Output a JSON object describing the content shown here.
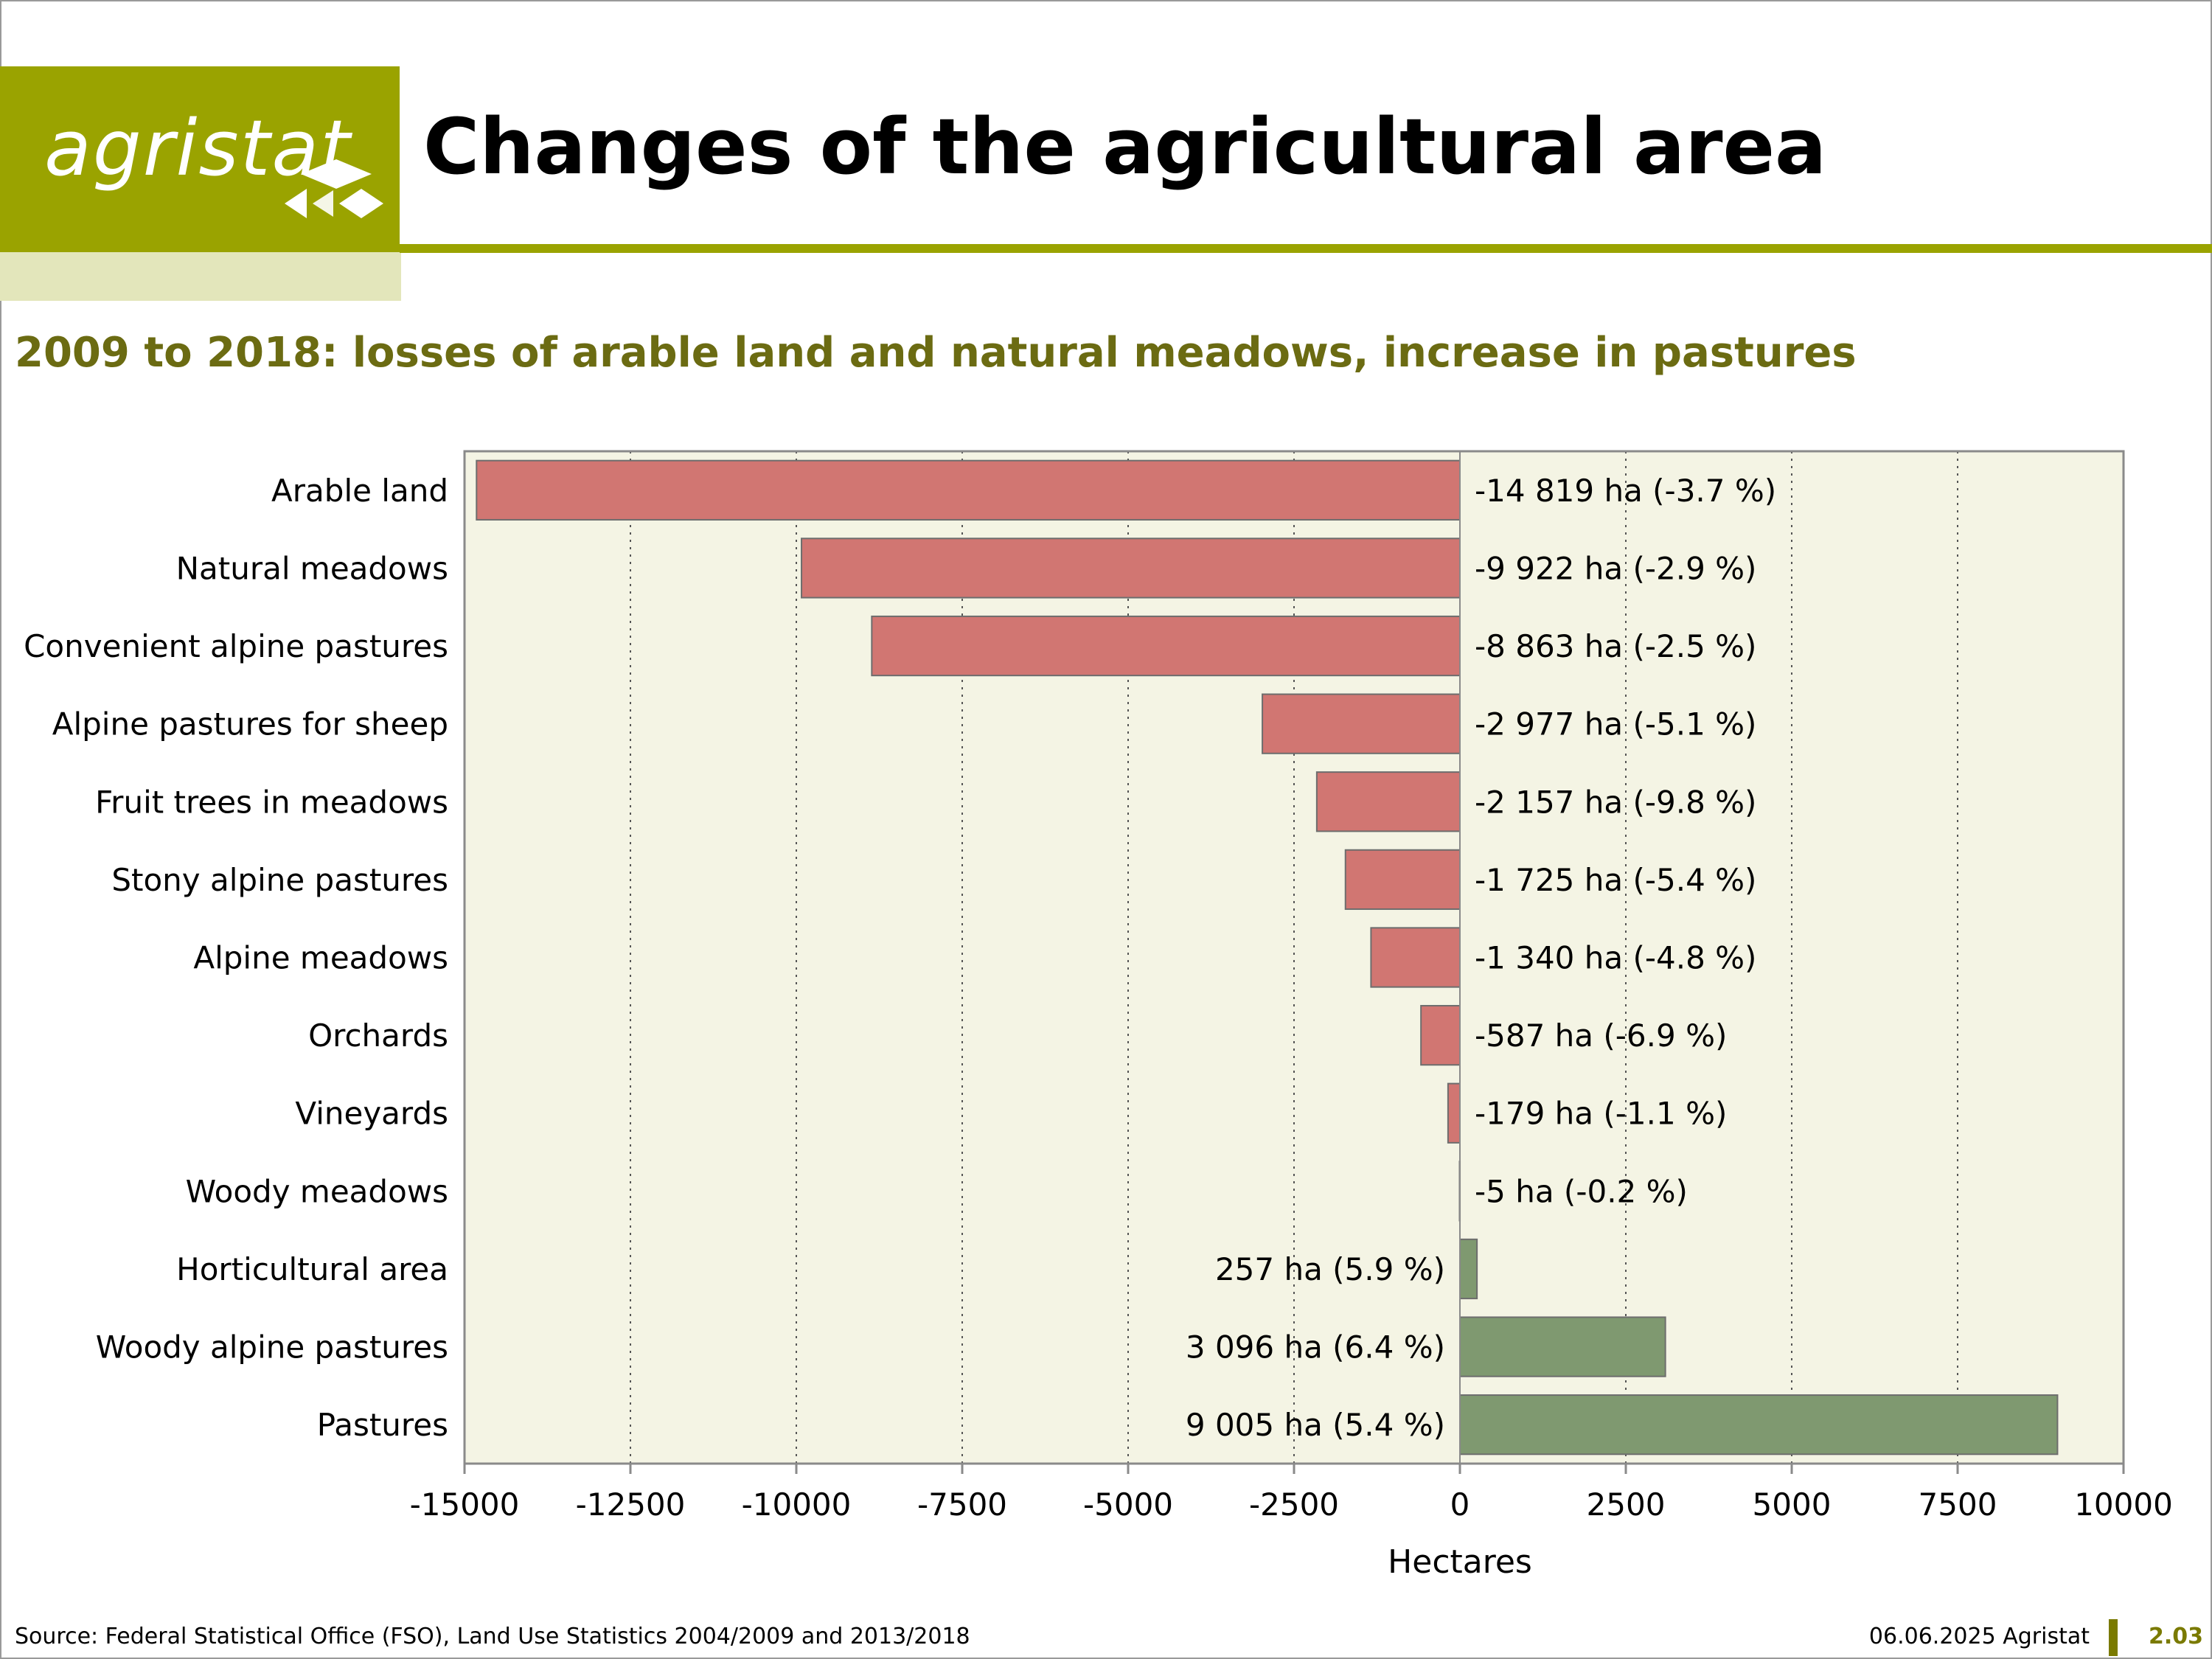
{
  "header": {
    "logo_text": "agristat",
    "title": "Changes of the agricultural area",
    "subtitle": "2009 to 2018: losses of arable land and natural meadows, increase in pastures"
  },
  "colors": {
    "brand": "#9aa300",
    "negative_bar": "#d17672",
    "positive_bar": "#7f9970",
    "plot_background": "#f4f4e4",
    "subtitle": "#6b6b12"
  },
  "chart_data": {
    "type": "bar",
    "orientation": "horizontal",
    "categories": [
      "Arable land",
      "Natural meadows",
      "Convenient alpine pastures",
      "Alpine pastures for sheep",
      "Fruit trees in meadows",
      "Stony alpine pastures",
      "Alpine meadows",
      "Orchards",
      "Vineyards",
      "Woody meadows",
      "Horticultural area",
      "Woody alpine pastures",
      "Pastures"
    ],
    "values": [
      -14819,
      -9922,
      -8863,
      -2977,
      -2157,
      -1725,
      -1340,
      -587,
      -179,
      -5,
      257,
      3096,
      9005
    ],
    "data_labels": [
      "-14 819 ha (-3.7 %)",
      "-9 922 ha (-2.9 %)",
      "-8 863 ha (-2.5 %)",
      "-2 977 ha (-5.1 %)",
      "-2 157 ha (-9.8 %)",
      "-1 725 ha (-5.4 %)",
      "-1 340 ha (-4.8 %)",
      "-587 ha (-6.9 %)",
      "-179 ha (-1.1 %)",
      "-5 ha (-0.2 %)",
      "257 ha (5.9 %)",
      "3 096 ha (6.4 %)",
      "9 005 ha (5.4 %)"
    ],
    "xlabel": "Hectares",
    "xlim": [
      -15000,
      10000
    ],
    "xticks": [
      -15000,
      -12500,
      -10000,
      -7500,
      -5000,
      -2500,
      0,
      2500,
      5000,
      7500,
      10000
    ],
    "xtick_labels": [
      "-15000",
      "-12500",
      "-10000",
      "-7500",
      "-5000",
      "-2500",
      "0",
      "2500",
      "5000",
      "7500",
      "10000"
    ],
    "grid": "vertical dotted"
  },
  "footer": {
    "source": "Source: Federal Statistical Office (FSO), Land Use Statistics 2004/2009 and 2013/2018",
    "date": "06.06.2025 Agristat",
    "page": "2.03"
  }
}
